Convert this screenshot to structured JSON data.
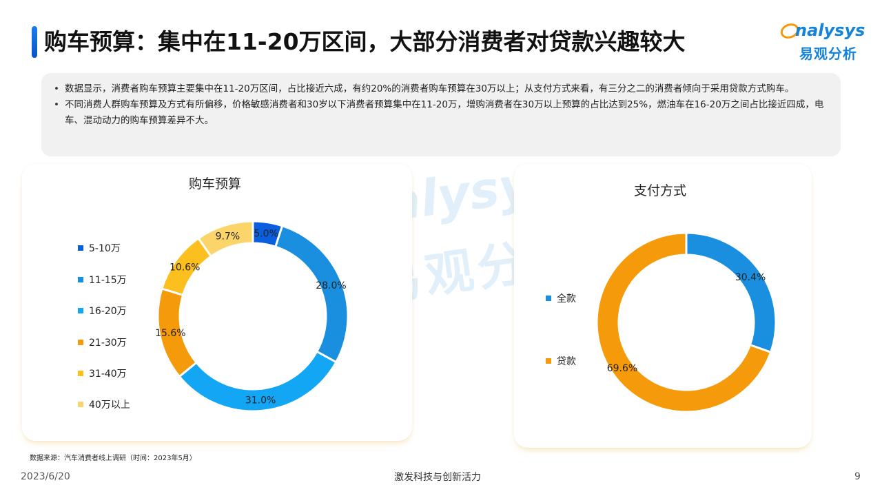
{
  "header": {
    "title": "购车预算：集中在11-20万区间，大部分消费者对贷款兴趣较大"
  },
  "logo": {
    "word": "nalysys",
    "cn": "易观分析"
  },
  "summary": {
    "bullets": [
      "数据显示，消费者购车预算主要集中在11-20万区间，占比接近六成，有约20%的消费者购车预算在30万以上；从支付方式来看，有三分之二的消费者倾向于采用贷款方式购车。",
      "不同消费人群购车预算及方式有所偏移，价格敏感消费者和30岁以下消费者预算集中在11-20万，增购消费者在30万以上预算的占比达到25%，燃油车在16-20万之间占比接近四成，电车、混动动力的购车预算差异不大。"
    ]
  },
  "chart_data": [
    {
      "type": "pie",
      "subtype": "donut",
      "title": "购车预算",
      "categories": [
        "5-10万",
        "11-15万",
        "16-20万",
        "21-30万",
        "31-40万",
        "40万以上"
      ],
      "values": [
        5.0,
        28.0,
        31.0,
        15.6,
        10.6,
        9.7
      ],
      "labels": [
        "5.0%",
        "28.0%",
        "31.0%",
        "15.6%",
        "10.6%",
        "9.7%"
      ],
      "colors": [
        "#0a5ee0",
        "#1a8fe0",
        "#12a6f5",
        "#f59a0a",
        "#fbbf1e",
        "#fcd56a"
      ],
      "legend_placement": "left"
    },
    {
      "type": "pie",
      "subtype": "donut",
      "title": "支付方式",
      "categories": [
        "全款",
        "贷款"
      ],
      "values": [
        30.4,
        69.6
      ],
      "labels": [
        "30.4%",
        "69.6%"
      ],
      "colors": [
        "#1a8fe0",
        "#f59a0a"
      ],
      "legend_placement": "left"
    }
  ],
  "watermark": {
    "word": "nalysys",
    "cn": "易观分析"
  },
  "footer": {
    "source": "数据来源：汽车消费者线上调研（时间：2023年5月）",
    "date": "2023/6/20",
    "slogan": "激发科技与创新活力",
    "page": "9"
  }
}
